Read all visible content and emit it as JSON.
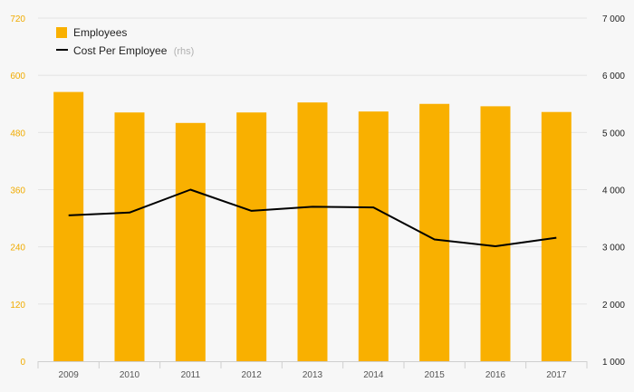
{
  "chart_data": {
    "type": "bar",
    "categories": [
      "2009",
      "2010",
      "2011",
      "2012",
      "2013",
      "2014",
      "2015",
      "2016",
      "2017"
    ],
    "series": [
      {
        "name": "Employees",
        "type": "bar",
        "axis": "left",
        "color": "#f9b000",
        "values": [
          565,
          522,
          500,
          522,
          543,
          524,
          540,
          535,
          523
        ]
      },
      {
        "name": "Cost Per Employee",
        "name_suffix": "(rhs)",
        "type": "line",
        "axis": "right",
        "color": "#000000",
        "values": [
          3550,
          3600,
          4000,
          3630,
          3700,
          3690,
          3130,
          3010,
          3160
        ]
      }
    ],
    "y_left": {
      "ylim": [
        0,
        720
      ],
      "ticks": [
        "0",
        "120",
        "240",
        "360",
        "480",
        "600",
        "720"
      ],
      "color": "#f0ab00"
    },
    "y_right": {
      "ylim": [
        1000,
        7000
      ],
      "ticks": [
        "1 000",
        "2 000",
        "3 000",
        "4 000",
        "5 000",
        "6 000",
        "7 000"
      ],
      "color": "#222222"
    },
    "grid": true,
    "legend_position": "top-left"
  }
}
